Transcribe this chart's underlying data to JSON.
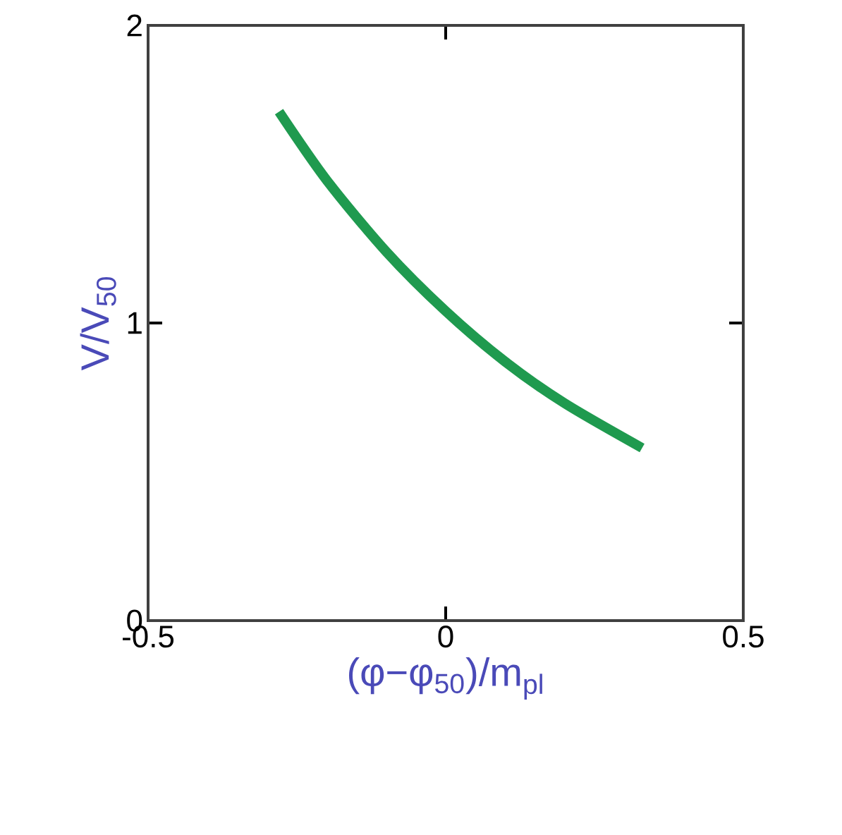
{
  "chart_data": {
    "type": "line",
    "xlabel": "(φ−φ$_{50}$)/m$_{pl}$",
    "ylabel": "V/V$_{50}$",
    "xlim": [
      -0.5,
      0.5
    ],
    "ylim": [
      0,
      2
    ],
    "xticks": [
      -0.5,
      0,
      0.5
    ],
    "yticks": [
      0,
      1,
      2
    ],
    "grid": false,
    "marker": "none",
    "line_style": "solid",
    "series": [
      {
        "color": "#1f9a4f",
        "x": [
          -0.28,
          -0.2,
          -0.1,
          0,
          0.1,
          0.2,
          0.33
        ],
        "values": [
          1.71,
          1.48,
          1.24,
          1.04,
          0.87,
          0.73,
          0.58
        ]
      }
    ]
  }
}
